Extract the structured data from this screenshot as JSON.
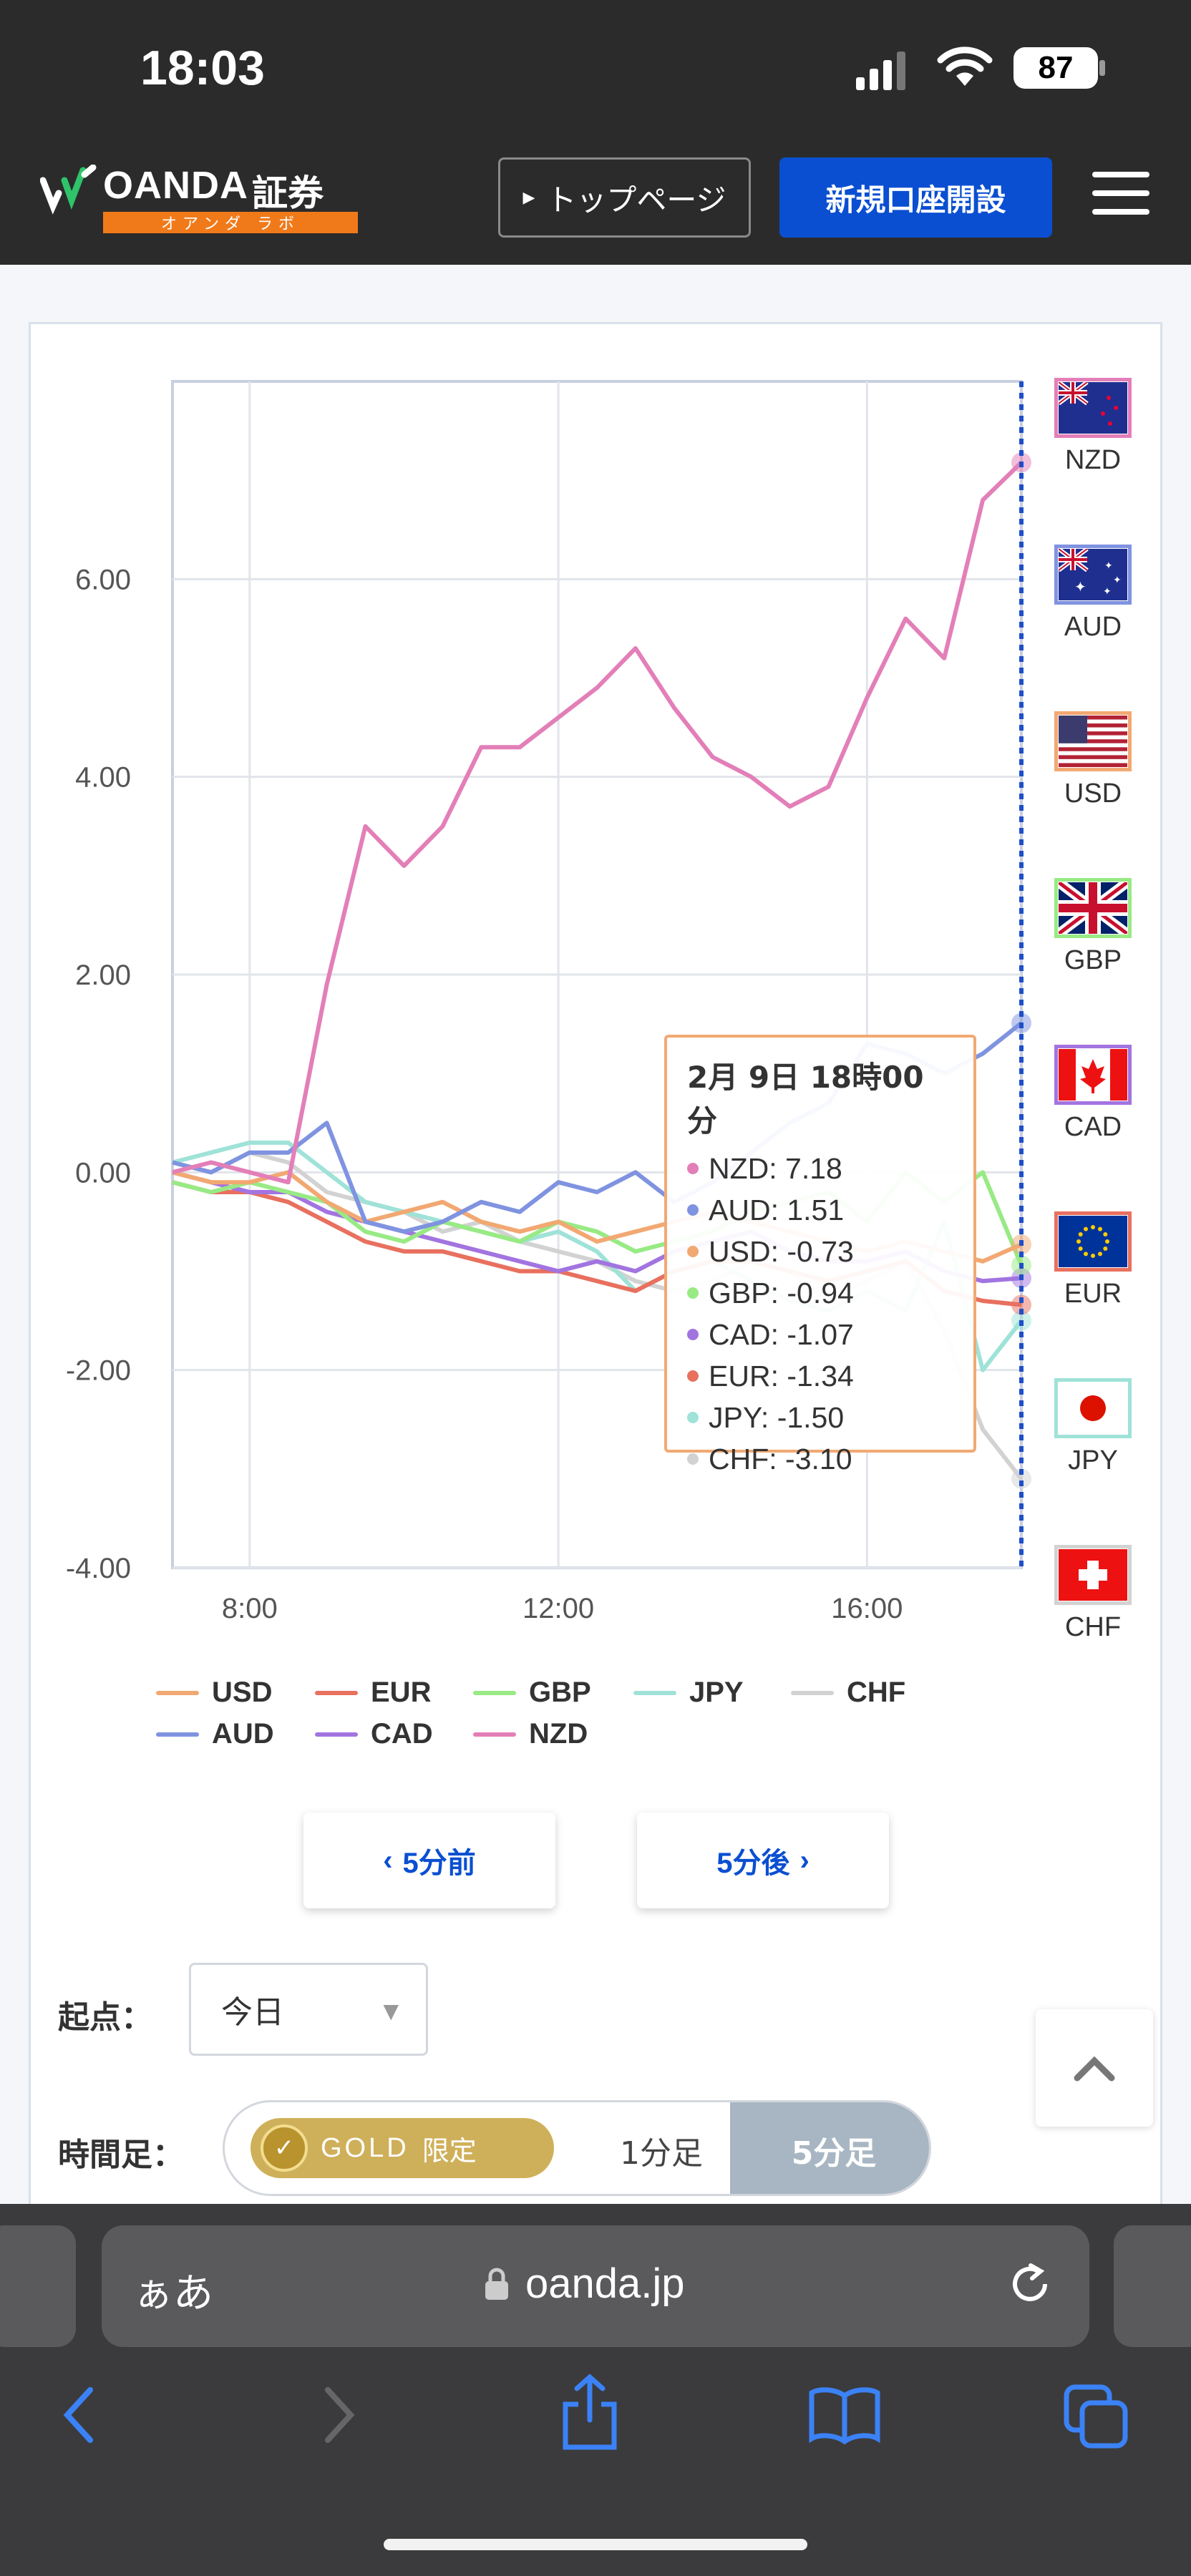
{
  "status": {
    "time": "18:03",
    "battery": "87"
  },
  "header": {
    "brand": "OANDA",
    "brand_jp": "証券",
    "brand_sub": "オアンダ ラボ",
    "top_page": "トップページ",
    "open_account": "新規口座開設"
  },
  "currencies": [
    {
      "code": "NZD",
      "color": "#e37fb8"
    },
    {
      "code": "AUD",
      "color": "#7f93e0"
    },
    {
      "code": "USD",
      "color": "#f2a872"
    },
    {
      "code": "GBP",
      "color": "#98ea84"
    },
    {
      "code": "CAD",
      "color": "#a274e0"
    },
    {
      "code": "EUR",
      "color": "#e8705f"
    },
    {
      "code": "JPY",
      "color": "#9fe2d8"
    },
    {
      "code": "CHF",
      "color": "#d2d2d2"
    }
  ],
  "legend": [
    {
      "label": "USD",
      "color": "#f2a872"
    },
    {
      "label": "EUR",
      "color": "#e8705f"
    },
    {
      "label": "GBP",
      "color": "#98ea84"
    },
    {
      "label": "JPY",
      "color": "#9fe2d8"
    },
    {
      "label": "CHF",
      "color": "#d2d2d2"
    },
    {
      "label": "AUD",
      "color": "#7f93e0"
    },
    {
      "label": "CAD",
      "color": "#a274e0"
    },
    {
      "label": "NZD",
      "color": "#e37fb8"
    }
  ],
  "tooltip": {
    "title": "2月 9日 18時00分",
    "rows": [
      {
        "label": "NZD: 7.18",
        "color": "#e37fb8"
      },
      {
        "label": "AUD: 1.51",
        "color": "#7f93e0"
      },
      {
        "label": "USD: -0.73",
        "color": "#f2a872"
      },
      {
        "label": "GBP: -0.94",
        "color": "#98ea84"
      },
      {
        "label": "CAD: -1.07",
        "color": "#a274e0"
      },
      {
        "label": "EUR: -1.34",
        "color": "#e8705f"
      },
      {
        "label": "JPY: -1.50",
        "color": "#9fe2d8"
      },
      {
        "label": "CHF: -3.10",
        "color": "#d2d2d2"
      }
    ]
  },
  "chart_data": {
    "type": "line",
    "x": [
      "7:00",
      "7:30",
      "8:00",
      "8:30",
      "9:00",
      "9:30",
      "10:00",
      "10:30",
      "11:00",
      "11:30",
      "12:00",
      "12:30",
      "13:00",
      "13:30",
      "14:00",
      "14:30",
      "15:00",
      "15:30",
      "16:00",
      "16:30",
      "17:00",
      "17:30",
      "18:00"
    ],
    "x_ticks": [
      "8:00",
      "12:00",
      "16:00"
    ],
    "ylim": [
      -4,
      8
    ],
    "y_ticks": [
      "6.00",
      "4.00",
      "2.00",
      "0.00",
      "-2.00",
      "-4.00"
    ],
    "grid": true,
    "series": [
      {
        "name": "NZD",
        "values": [
          0.0,
          0.1,
          0.0,
          -0.1,
          1.9,
          3.5,
          3.1,
          3.5,
          4.3,
          4.3,
          4.6,
          4.9,
          5.3,
          4.7,
          4.2,
          4.0,
          3.7,
          3.9,
          4.8,
          5.6,
          5.2,
          6.8,
          7.18
        ]
      },
      {
        "name": "AUD",
        "values": [
          0.1,
          0.0,
          0.2,
          0.2,
          0.5,
          -0.5,
          -0.6,
          -0.5,
          -0.3,
          -0.4,
          -0.1,
          -0.2,
          0.0,
          -0.3,
          -0.1,
          0.2,
          0.5,
          0.7,
          1.3,
          1.2,
          1.0,
          1.2,
          1.51
        ]
      },
      {
        "name": "USD",
        "values": [
          0.0,
          -0.1,
          -0.1,
          0.0,
          -0.3,
          -0.5,
          -0.4,
          -0.3,
          -0.5,
          -0.6,
          -0.5,
          -0.7,
          -0.6,
          -0.5,
          -0.4,
          -0.5,
          -0.6,
          -0.7,
          -0.8,
          -0.7,
          -0.8,
          -0.9,
          -0.73
        ]
      },
      {
        "name": "GBP",
        "values": [
          -0.1,
          -0.2,
          -0.1,
          -0.2,
          -0.3,
          -0.6,
          -0.7,
          -0.5,
          -0.6,
          -0.7,
          -0.5,
          -0.6,
          -0.8,
          -0.7,
          -0.6,
          -0.4,
          -0.3,
          -0.2,
          -0.5,
          0.0,
          -0.3,
          0.0,
          -0.94
        ]
      },
      {
        "name": "CAD",
        "values": [
          0.0,
          -0.1,
          -0.2,
          -0.2,
          -0.4,
          -0.5,
          -0.6,
          -0.7,
          -0.8,
          -0.9,
          -1.0,
          -0.9,
          -1.0,
          -0.8,
          -0.7,
          -0.6,
          -0.8,
          -0.9,
          -0.9,
          -0.8,
          -1.0,
          -1.1,
          -1.07
        ]
      },
      {
        "name": "EUR",
        "values": [
          -0.1,
          -0.2,
          -0.2,
          -0.3,
          -0.5,
          -0.7,
          -0.8,
          -0.8,
          -0.9,
          -1.0,
          -1.0,
          -1.1,
          -1.2,
          -1.0,
          -0.9,
          -0.9,
          -1.0,
          -1.1,
          -1.0,
          -0.9,
          -1.2,
          -1.3,
          -1.34
        ]
      },
      {
        "name": "JPY",
        "values": [
          0.1,
          0.2,
          0.3,
          0.3,
          0.0,
          -0.3,
          -0.4,
          -0.5,
          -0.6,
          -0.7,
          -0.6,
          -0.8,
          -1.2,
          -1.0,
          -0.9,
          -1.1,
          -1.3,
          -1.4,
          -1.2,
          -1.4,
          -0.5,
          -2.0,
          -1.5
        ]
      },
      {
        "name": "CHF",
        "values": [
          0.1,
          0.0,
          0.2,
          0.1,
          -0.2,
          -0.3,
          -0.4,
          -0.6,
          -0.5,
          -0.7,
          -0.8,
          -0.9,
          -1.1,
          -1.2,
          -1.1,
          -0.9,
          -1.0,
          -1.3,
          -1.1,
          -0.9,
          -1.6,
          -2.6,
          -3.1
        ]
      }
    ]
  },
  "nav": {
    "prev": "5分前",
    "next": "5分後"
  },
  "controls": {
    "start_label": "起点：",
    "start_value": "今日",
    "timeframe_label": "時間足：",
    "gold": "GOLD",
    "gold_limited": "限定",
    "one_min": "1分足",
    "five_min": "5分足"
  },
  "browser": {
    "text_size": "ぁあ",
    "url": "oanda.jp"
  }
}
